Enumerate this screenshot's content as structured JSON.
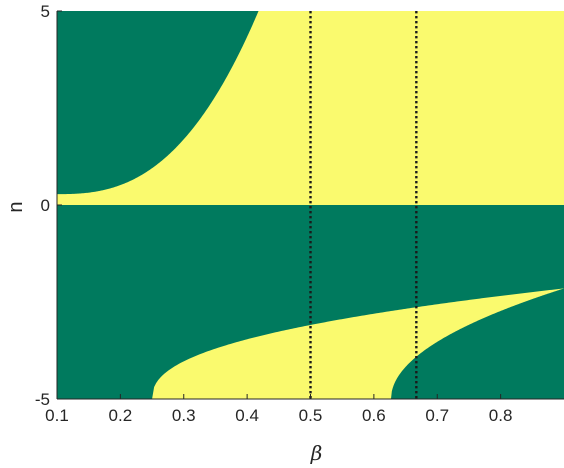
{
  "chart_data": {
    "type": "heatmap",
    "description_of_regions": "two-color region map over beta and n",
    "xlabel": "β",
    "ylabel": "n",
    "xlim": [
      0.1,
      0.9
    ],
    "ylim": [
      -5,
      5
    ],
    "x_ticks": [
      0.1,
      0.2,
      0.3,
      0.4,
      0.5,
      0.6,
      0.7,
      0.8
    ],
    "x_tick_labels": [
      "0.1",
      "0.2",
      "0.3",
      "0.4",
      "0.5",
      "0.6",
      "0.7",
      "0.8"
    ],
    "y_ticks": [
      -5,
      0,
      5
    ],
    "y_tick_labels": [
      "-5",
      "0",
      "5"
    ],
    "colors": {
      "region_a": "#007a5e",
      "region_b": "#fafa6e",
      "reference_line": "#1a1a1a",
      "axis": "#262626"
    },
    "reference_lines": [
      {
        "x": 0.5,
        "style": "dotted"
      },
      {
        "x": 0.667,
        "style": "dotted"
      }
    ],
    "grid": false,
    "legend": "none"
  }
}
